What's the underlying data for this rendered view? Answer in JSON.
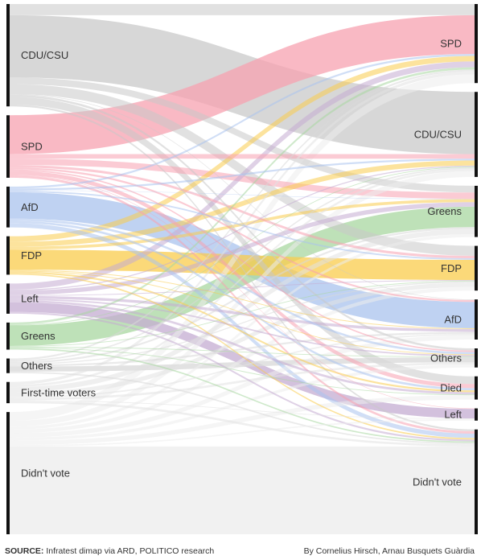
{
  "chart_data": {
    "type": "sankey",
    "sources": [
      "CDU/CSU",
      "SPD",
      "AfD",
      "FDP",
      "Left",
      "Greens",
      "Others",
      "First-time voters",
      "Didn't vote"
    ],
    "targets": [
      "SPD",
      "CDU/CSU",
      "Greens",
      "FDP",
      "AfD",
      "Others",
      "Died",
      "Left",
      "Didn't vote"
    ],
    "colors": {
      "CDU/CSU": "#c9c9c9",
      "SPD": "#f7a1b0",
      "AfD": "#a9c3ee",
      "FDP": "#f9cc4c",
      "Left": "#c4acd2",
      "Greens": "#a8d7a0",
      "Others": "#d8d8d8",
      "First-time voters": "#e2e2e2",
      "Didn't vote": "#ececec"
    },
    "flows": [
      [
        "CDU/CSU",
        "SPD",
        1.53
      ],
      [
        "CDU/CSU",
        "CDU/CSU",
        8.5
      ],
      [
        "CDU/CSU",
        "Greens",
        0.92
      ],
      [
        "CDU/CSU",
        "FDP",
        1.36
      ],
      [
        "CDU/CSU",
        "AfD",
        0.08
      ],
      [
        "CDU/CSU",
        "Others",
        0.3
      ],
      [
        "CDU/CSU",
        "Died",
        1.05
      ],
      [
        "CDU/CSU",
        "Didn't vote",
        0.25
      ],
      [
        "SPD",
        "SPD",
        5.3
      ],
      [
        "SPD",
        "CDU/CSU",
        0.63
      ],
      [
        "SPD",
        "Greens",
        0.86
      ],
      [
        "SPD",
        "FDP",
        0.34
      ],
      [
        "SPD",
        "AfD",
        0.26
      ],
      [
        "SPD",
        "Others",
        0.2
      ],
      [
        "SPD",
        "Died",
        0.56
      ],
      [
        "SPD",
        "Left",
        0.07
      ],
      [
        "SPD",
        "Didn't vote",
        0.32
      ],
      [
        "AfD",
        "SPD",
        0.26
      ],
      [
        "AfD",
        "CDU/CSU",
        0.25
      ],
      [
        "AfD",
        "Greens",
        0.05
      ],
      [
        "AfD",
        "FDP",
        0.21
      ],
      [
        "AfD",
        "AfD",
        3.6
      ],
      [
        "AfD",
        "Others",
        0.31
      ],
      [
        "AfD",
        "Died",
        0.3
      ],
      [
        "AfD",
        "Didn't vote",
        0.6
      ],
      [
        "FDP",
        "SPD",
        0.74
      ],
      [
        "FDP",
        "CDU/CSU",
        0.69
      ],
      [
        "FDP",
        "Greens",
        0.41
      ],
      [
        "FDP",
        "FDP",
        2.75
      ],
      [
        "FDP",
        "AfD",
        0.11
      ],
      [
        "FDP",
        "Others",
        0.1
      ],
      [
        "FDP",
        "Died",
        0.25
      ],
      [
        "FDP",
        "Didn't vote",
        0.2
      ],
      [
        "Left",
        "SPD",
        0.82
      ],
      [
        "Left",
        "CDU/CSU",
        0.15
      ],
      [
        "Left",
        "Greens",
        0.61
      ],
      [
        "Left",
        "FDP",
        0.1
      ],
      [
        "Left",
        "AfD",
        0.38
      ],
      [
        "Left",
        "Others",
        0.2
      ],
      [
        "Left",
        "Died",
        0.31
      ],
      [
        "Left",
        "Left",
        1.3
      ],
      [
        "Left",
        "Didn't vote",
        0.25
      ],
      [
        "Greens",
        "SPD",
        0.3
      ],
      [
        "Greens",
        "CDU/CSU",
        0.1
      ],
      [
        "Greens",
        "Greens",
        2.8
      ],
      [
        "Greens",
        "FDP",
        0.1
      ],
      [
        "Greens",
        "Others",
        0.1
      ],
      [
        "Greens",
        "Died",
        0.1
      ],
      [
        "Greens",
        "Didn't vote",
        0.2
      ],
      [
        "Others",
        "SPD",
        0.25
      ],
      [
        "Others",
        "CDU/CSU",
        0.2
      ],
      [
        "Others",
        "Greens",
        0.25
      ],
      [
        "Others",
        "FDP",
        0.15
      ],
      [
        "Others",
        "AfD",
        0.25
      ],
      [
        "Others",
        "Others",
        0.7
      ],
      [
        "Others",
        "Didn't vote",
        0.2
      ],
      [
        "First-time voters",
        "SPD",
        0.4
      ],
      [
        "First-time voters",
        "CDU/CSU",
        0.3
      ],
      [
        "First-time voters",
        "Greens",
        0.7
      ],
      [
        "First-time voters",
        "FDP",
        0.6
      ],
      [
        "First-time voters",
        "AfD",
        0.2
      ],
      [
        "First-time voters",
        "Others",
        0.3
      ],
      [
        "First-time voters",
        "Left",
        0.1
      ],
      [
        "First-time voters",
        "Didn't vote",
        0.3
      ],
      [
        "Didn't vote",
        "SPD",
        1.2
      ],
      [
        "Didn't vote",
        "CDU/CSU",
        0.8
      ],
      [
        "Didn't vote",
        "Greens",
        0.4
      ],
      [
        "Didn't vote",
        "FDP",
        0.5
      ],
      [
        "Didn't vote",
        "AfD",
        0.6
      ],
      [
        "Didn't vote",
        "Others",
        0.4
      ],
      [
        "Didn't vote",
        "Died",
        0.6
      ],
      [
        "Didn't vote",
        "Left",
        0.2
      ],
      [
        "Didn't vote",
        "Didn't vote",
        12.0
      ]
    ]
  },
  "footer": {
    "source_label": "SOURCE:",
    "source_text": " Infratest dimap via ARD, POLITICO research",
    "credit": "By Cornelius Hirsch, Arnau Busquets Guàrdia"
  }
}
